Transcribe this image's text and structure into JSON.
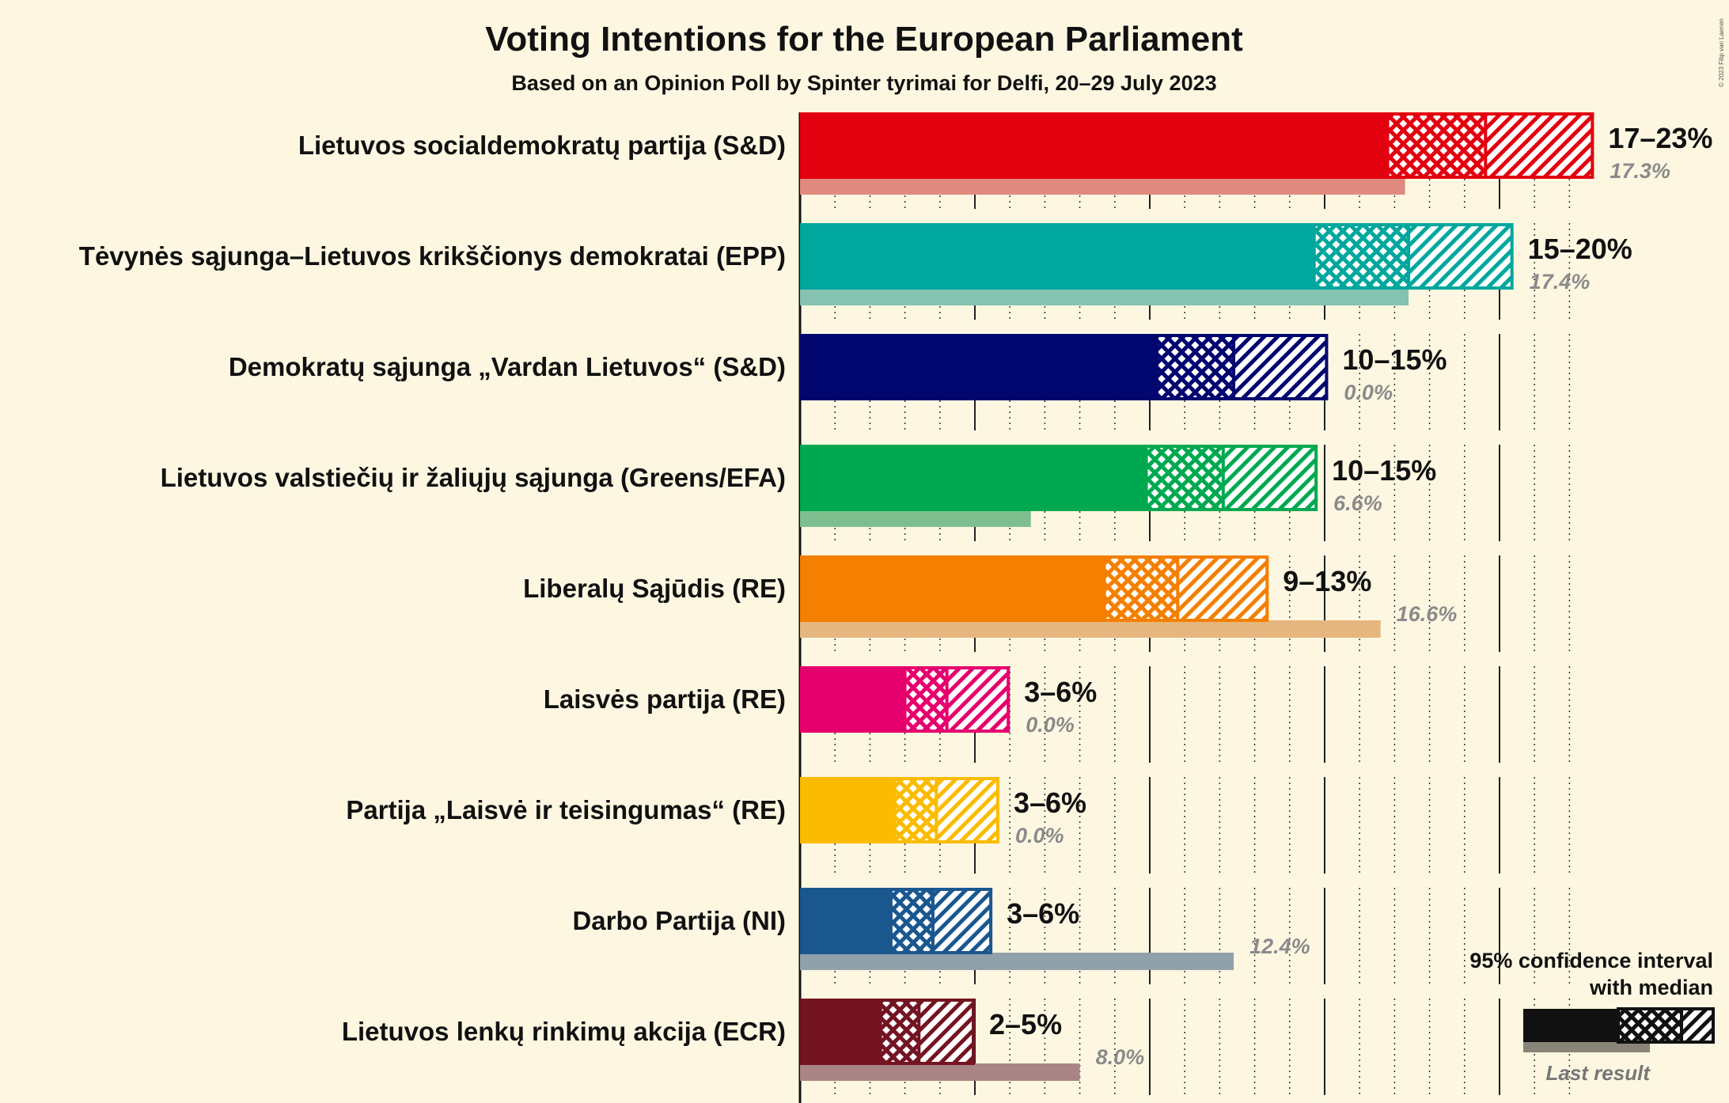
{
  "chart_data": {
    "type": "bar",
    "title": "Voting Intentions for the European Parliament",
    "subtitle": "Based on an Opinion Poll by Spinter tyrimai for Delfi, 20–29 July 2023",
    "copyright": "© 2023 Filip van Laenen",
    "xlim": [
      0,
      23
    ],
    "gridlines": [
      5,
      10,
      15,
      20
    ],
    "minor_gridlines": [
      1,
      2,
      3,
      4,
      6,
      7,
      8,
      9,
      11,
      12,
      13,
      14,
      16,
      17,
      18,
      19,
      21,
      22
    ],
    "legend": {
      "title_line1": "95% confidence interval",
      "title_line2": "with median",
      "last_label": "Last result",
      "placement": "bottom-right"
    },
    "parties": [
      {
        "name": "Lietuvos socialdemokratų partija (S&D)",
        "color": "#e3000f",
        "last_color": "#e08a7f",
        "low": 16.8,
        "median": 19.6,
        "high": 22.7,
        "range_label": "17–23%",
        "last": 17.3,
        "last_label": "17.3%"
      },
      {
        "name": "Tėvynės sąjunga–Lietuvos krikščionys demokratai (EPP)",
        "color": "#00a79d",
        "last_color": "#86c2b0",
        "low": 14.7,
        "median": 17.4,
        "high": 20.4,
        "range_label": "15–20%",
        "last": 17.4,
        "last_label": "17.4%"
      },
      {
        "name": "Demokratų sąjunga „Vardan Lietuvos“ (S&D)",
        "color": "#02066f",
        "last_color": "#8080a0",
        "low": 10.2,
        "median": 12.4,
        "high": 15.1,
        "range_label": "10–15%",
        "last": 0.0,
        "last_label": "0.0%"
      },
      {
        "name": "Lietuvos valstiečių ir žaliųjų sąjunga (Greens/EFA)",
        "color": "#00a94f",
        "last_color": "#7fbf8f",
        "low": 9.9,
        "median": 12.1,
        "high": 14.8,
        "range_label": "10–15%",
        "last": 6.6,
        "last_label": "6.6%"
      },
      {
        "name": "Liberalų Sąjūdis (RE)",
        "color": "#f47f00",
        "last_color": "#e5b77f",
        "low": 8.7,
        "median": 10.8,
        "high": 13.4,
        "range_label": "9–13%",
        "last": 16.6,
        "last_label": "16.6%"
      },
      {
        "name": "Laisvės partija (RE)",
        "color": "#e6006e",
        "last_color": "#e68fb5",
        "low": 3.0,
        "median": 4.2,
        "high": 6.0,
        "range_label": "3–6%",
        "last": 0.0,
        "last_label": "0.0%"
      },
      {
        "name": "Partija „Laisvė ir teisingumas“ (RE)",
        "color": "#fbbb00",
        "last_color": "#f0d080",
        "low": 2.7,
        "median": 3.9,
        "high": 5.7,
        "range_label": "3–6%",
        "last": 0.0,
        "last_label": "0.0%"
      },
      {
        "name": "Darbo Partija (NI)",
        "color": "#1a578f",
        "last_color": "#91a1aa",
        "low": 2.6,
        "median": 3.8,
        "high": 5.5,
        "range_label": "3–6%",
        "last": 12.4,
        "last_label": "12.4%"
      },
      {
        "name": "Lietuvos lenkų rinkimų akcija (ECR)",
        "color": "#741422",
        "last_color": "#aa8585",
        "low": 2.3,
        "median": 3.4,
        "high": 5.0,
        "range_label": "2–5%",
        "last": 8.0,
        "last_label": "8.0%"
      }
    ]
  }
}
